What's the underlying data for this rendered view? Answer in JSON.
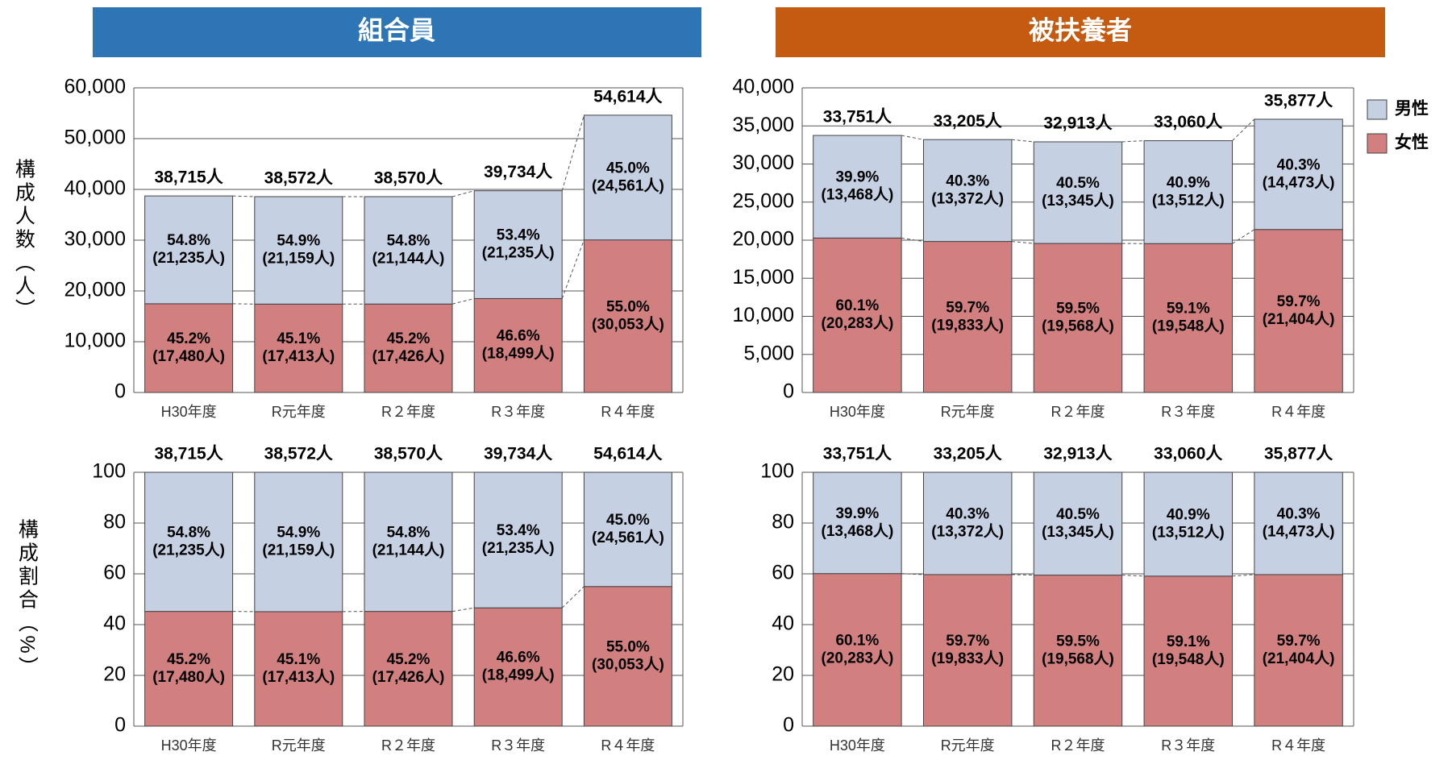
{
  "headers": [
    "組合員",
    "被扶養者"
  ],
  "chart_data": [
    {
      "type": "bar",
      "stacked": true,
      "y_label": "構成人数（人）",
      "categories": [
        "H30年度",
        "R元年度",
        "R２年度",
        "R３年度",
        "R４年度"
      ],
      "series": [
        {
          "color": "#d27f7f",
          "values": [
            17480,
            17413,
            17426,
            18499,
            30053
          ],
          "value_labels": [
            "(17,480人)",
            "(17,413人)",
            "(17,426人)",
            "(18,499人)",
            "(30,053人)"
          ],
          "percent_labels": [
            "45.2%",
            "45.1%",
            "45.2%",
            "46.6%",
            "55.0%"
          ]
        },
        {
          "color": "#c5d0e3",
          "values": [
            21235,
            21159,
            21144,
            21235,
            24561
          ],
          "value_labels": [
            "(21,235人)",
            "(21,159人)",
            "(21,144人)",
            "(21,235人)",
            "(24,561人)"
          ],
          "percent_labels": [
            "54.8%",
            "54.9%",
            "54.8%",
            "53.4%",
            "45.0%"
          ]
        }
      ],
      "total_labels": [
        "38,715人",
        "38,572人",
        "38,570人",
        "39,734人",
        "54,614人"
      ],
      "ylim": [
        0,
        60000
      ],
      "yticks": [
        0,
        {
          "value": 10000,
          "label": "10,000"
        },
        {
          "value": 20000,
          "label": "20,000"
        },
        {
          "value": 30000,
          "label": "30,000"
        },
        {
          "value": 40000,
          "label": "40,000"
        },
        {
          "value": 50000,
          "label": "50,000"
        },
        {
          "value": 60000,
          "label": "60,000"
        }
      ],
      "grid": true
    },
    {
      "type": "bar",
      "stacked": true,
      "legend": "right",
      "categories": [
        "H30年度",
        "R元年度",
        "R２年度",
        "R３年度",
        "R４年度"
      ],
      "series": [
        {
          "name": "女性",
          "color": "#d27f7f",
          "values": [
            20283,
            19833,
            19568,
            19548,
            21404
          ],
          "value_labels": [
            "(20,283人)",
            "(19,833人)",
            "(19,568人)",
            "(19,548人)",
            "(21,404人)"
          ],
          "percent_labels": [
            "60.1%",
            "59.7%",
            "59.5%",
            "59.1%",
            "59.7%"
          ]
        },
        {
          "name": "男性",
          "color": "#c5d0e3",
          "values": [
            13468,
            13372,
            13345,
            13512,
            14473
          ],
          "value_labels": [
            "(13,468人)",
            "(13,372人)",
            "(13,345人)",
            "(13,512人)",
            "(14,473人)"
          ],
          "percent_labels": [
            "39.9%",
            "40.3%",
            "40.5%",
            "40.9%",
            "40.3%"
          ]
        }
      ],
      "total_labels": [
        "33,751人",
        "33,205人",
        "32,913人",
        "33,060人",
        "35,877人"
      ],
      "ylim": [
        0,
        40000
      ],
      "yticks": [
        0,
        {
          "value": 5000,
          "label": "5,000"
        },
        {
          "value": 10000,
          "label": "10,000"
        },
        {
          "value": 15000,
          "label": "15,000"
        },
        {
          "value": 20000,
          "label": "20,000"
        },
        {
          "value": 25000,
          "label": "25,000"
        },
        {
          "value": 30000,
          "label": "30,000"
        },
        {
          "value": 35000,
          "label": "35,000"
        },
        {
          "value": 40000,
          "label": "40,000"
        }
      ],
      "grid": true
    },
    {
      "type": "bar",
      "stacked": true,
      "y_label": "構成割合（%）",
      "categories": [
        "H30年度",
        "R元年度",
        "R２年度",
        "R３年度",
        "R４年度"
      ],
      "series": [
        {
          "color": "#d27f7f",
          "values": [
            45.2,
            45.1,
            45.2,
            46.6,
            55.0
          ],
          "value_labels": [
            "45.2%",
            "45.1%",
            "45.2%",
            "46.6%",
            "55.0%"
          ],
          "count_labels": [
            "(17,480人)",
            "(17,413人)",
            "(17,426人)",
            "(18,499人)",
            "(30,053人)"
          ]
        },
        {
          "color": "#c5d0e3",
          "values": [
            54.8,
            54.9,
            54.8,
            53.4,
            45.0
          ],
          "value_labels": [
            "54.8%",
            "54.9%",
            "54.8%",
            "53.4%",
            "45.0%"
          ],
          "count_labels": [
            "(21,235人)",
            "(21,159人)",
            "(21,144人)",
            "(21,235人)",
            "(24,561人)"
          ]
        }
      ],
      "total_labels": [
        "38,715人",
        "38,572人",
        "38,570人",
        "39,734人",
        "54,614人"
      ],
      "ylim": [
        0,
        100
      ],
      "yticks": [
        0,
        20,
        40,
        60,
        80,
        100
      ],
      "grid": true
    },
    {
      "type": "bar",
      "stacked": true,
      "categories": [
        "H30年度",
        "R元年度",
        "R２年度",
        "R３年度",
        "R４年度"
      ],
      "series": [
        {
          "color": "#d27f7f",
          "values": [
            60.1,
            59.7,
            59.5,
            59.1,
            59.7
          ],
          "value_labels": [
            "60.1%",
            "59.7%",
            "59.5%",
            "59.1%",
            "59.7%"
          ],
          "count_labels": [
            "(20,283人)",
            "(19,833人)",
            "(19,568人)",
            "(19,548人)",
            "(21,404人)"
          ]
        },
        {
          "color": "#c5d0e3",
          "values": [
            39.9,
            40.3,
            40.5,
            40.9,
            40.3
          ],
          "value_labels": [
            "39.9%",
            "40.3%",
            "40.5%",
            "40.9%",
            "40.3%"
          ],
          "count_labels": [
            "(13,468人)",
            "(13,372人)",
            "(13,345人)",
            "(13,512人)",
            "(14,473人)"
          ]
        }
      ],
      "total_labels": [
        "33,751人",
        "33,205人",
        "32,913人",
        "33,060人",
        "35,877人"
      ],
      "ylim": [
        0,
        100
      ],
      "yticks": [
        0,
        20,
        40,
        60,
        80,
        100
      ],
      "grid": true
    }
  ]
}
